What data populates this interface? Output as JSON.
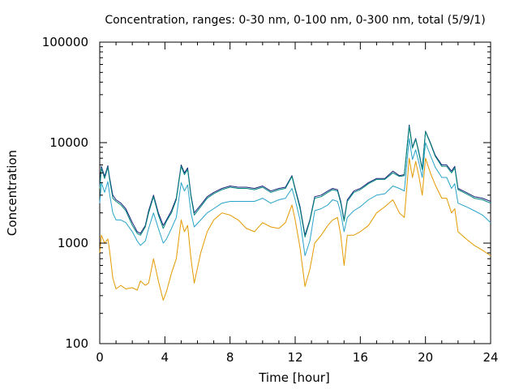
{
  "chart_data": {
    "type": "line",
    "title": "Concentration, ranges: 0-30 nm, 0-100 nm, 0-300 nm, total (5/9/1)",
    "xlabel": "Time [hour]",
    "ylabel": "Concentration",
    "xlim": [
      0,
      24
    ],
    "ylim": [
      100,
      100000
    ],
    "yscale": "log",
    "grid": false,
    "legend": "none",
    "x_ticks": [
      0,
      4,
      8,
      12,
      16,
      20,
      24
    ],
    "x_tick_labels": [
      "0",
      "4",
      "8",
      "12",
      "16",
      "20",
      "24"
    ],
    "y_ticks": [
      100,
      1000,
      10000,
      100000
    ],
    "y_tick_labels": [
      "100",
      "1000",
      "10000",
      "100000"
    ],
    "x": [
      0,
      0.1,
      0.3,
      0.5,
      0.6,
      0.8,
      1.0,
      1.3,
      1.6,
      2.0,
      2.3,
      2.5,
      2.8,
      3.0,
      3.3,
      3.6,
      3.9,
      4.1,
      4.4,
      4.7,
      5.0,
      5.2,
      5.4,
      5.6,
      5.8,
      6.2,
      6.6,
      7.0,
      7.5,
      8.0,
      8.5,
      9.0,
      9.5,
      10.0,
      10.5,
      11.0,
      11.4,
      11.8,
      12.0,
      12.3,
      12.6,
      12.9,
      13.2,
      13.6,
      14.0,
      14.3,
      14.6,
      14.8,
      15.0,
      15.2,
      15.6,
      16.0,
      16.5,
      17.0,
      17.5,
      18.0,
      18.4,
      18.7,
      19.0,
      19.2,
      19.4,
      19.6,
      19.8,
      20.0,
      20.3,
      20.6,
      21.0,
      21.3,
      21.6,
      21.8,
      22.0,
      22.5,
      23.0,
      23.5,
      24.0
    ],
    "series": [
      {
        "color": "#1a237e",
        "values": [
          3700,
          5800,
          4600,
          5900,
          4500,
          3000,
          2700,
          2500,
          2200,
          1600,
          1300,
          1250,
          1500,
          2100,
          3000,
          2000,
          1500,
          1700,
          2100,
          2800,
          6000,
          5000,
          5600,
          3000,
          2000,
          2400,
          2900,
          3200,
          3500,
          3700,
          3600,
          3600,
          3500,
          3700,
          3300,
          3500,
          3600,
          4700,
          3500,
          2300,
          1200,
          1700,
          2900,
          3000,
          3300,
          3500,
          3400,
          2600,
          1700,
          2700,
          3300,
          3500,
          4000,
          4400,
          4400,
          5200,
          4700,
          4800,
          15000,
          9000,
          11000,
          8000,
          5500,
          13000,
          10000,
          7500,
          6000,
          6000,
          5200,
          5800,
          3500,
          3200,
          2900,
          2800,
          2600
        ]
      },
      {
        "color": "#00897b",
        "values": [
          3500,
          5600,
          4400,
          5700,
          4300,
          2800,
          2600,
          2400,
          2100,
          1500,
          1250,
          1200,
          1450,
          2000,
          2900,
          1900,
          1400,
          1650,
          2000,
          2700,
          5800,
          4800,
          5400,
          2900,
          1900,
          2300,
          2800,
          3100,
          3400,
          3600,
          3500,
          3500,
          3400,
          3600,
          3200,
          3400,
          3500,
          4600,
          3400,
          2200,
          1150,
          1650,
          2800,
          2900,
          3200,
          3400,
          3300,
          2500,
          1650,
          2600,
          3200,
          3400,
          3900,
          4300,
          4300,
          5000,
          4600,
          4700,
          14500,
          8800,
          10800,
          7800,
          5400,
          12800,
          9800,
          7300,
          5800,
          5800,
          5000,
          5600,
          3400,
          3100,
          2800,
          2700,
          2500
        ]
      },
      {
        "color": "#29a3c9",
        "values": [
          2500,
          4000,
          3200,
          4100,
          3100,
          2000,
          1700,
          1700,
          1600,
          1300,
          1050,
          950,
          1050,
          1400,
          2000,
          1400,
          1000,
          1100,
          1400,
          1800,
          4000,
          3300,
          3800,
          2000,
          1450,
          1700,
          2000,
          2200,
          2500,
          2600,
          2600,
          2600,
          2600,
          2800,
          2500,
          2700,
          2800,
          3500,
          2700,
          1700,
          750,
          1050,
          2100,
          2200,
          2400,
          2700,
          2600,
          2000,
          1300,
          1800,
          2100,
          2300,
          2700,
          3000,
          3100,
          3700,
          3500,
          3300,
          11000,
          6800,
          8500,
          6300,
          4500,
          10000,
          7500,
          5700,
          4500,
          4500,
          3500,
          3900,
          2500,
          2300,
          2100,
          1900,
          1600
        ]
      },
      {
        "color": "#e39a00",
        "values": [
          800,
          1200,
          1000,
          1100,
          850,
          450,
          350,
          380,
          350,
          360,
          340,
          420,
          380,
          400,
          700,
          420,
          270,
          330,
          500,
          700,
          1700,
          1300,
          1500,
          700,
          400,
          800,
          1300,
          1700,
          2000,
          1900,
          1700,
          1400,
          1300,
          1600,
          1450,
          1400,
          1600,
          2400,
          1700,
          900,
          370,
          550,
          1000,
          1200,
          1500,
          1700,
          1800,
          1200,
          600,
          1200,
          1200,
          1300,
          1500,
          2000,
          2300,
          2700,
          2000,
          1800,
          7000,
          4500,
          6500,
          4600,
          3000,
          7000,
          5000,
          3800,
          2800,
          2800,
          2000,
          2200,
          1300,
          1100,
          950,
          850,
          750
        ]
      }
    ]
  }
}
